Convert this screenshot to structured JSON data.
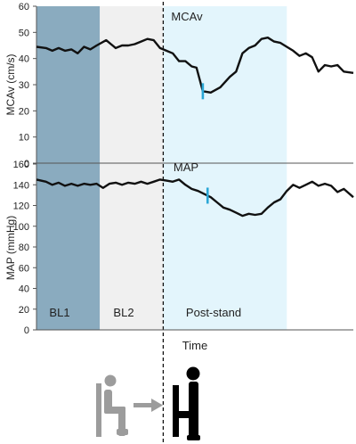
{
  "chart_data": [
    {
      "type": "line",
      "title": "MCAv",
      "xlabel": "",
      "ylabel": "MCAv (cm/s)",
      "ylim": [
        0,
        60
      ],
      "yticks": [
        0,
        10,
        20,
        30,
        40,
        50,
        60
      ],
      "grid": false,
      "nadir_marker_t": 0.525,
      "series": [
        {
          "t": [
            0,
            0.03,
            0.05,
            0.07,
            0.09,
            0.11,
            0.13,
            0.15,
            0.17,
            0.19,
            0.22,
            0.25,
            0.27,
            0.29,
            0.31,
            0.33,
            0.35,
            0.37,
            0.39,
            0.41,
            0.43,
            0.45,
            0.47,
            0.49,
            0.505,
            0.525,
            0.55,
            0.58,
            0.61,
            0.63,
            0.65,
            0.67,
            0.69,
            0.71,
            0.73,
            0.75,
            0.77,
            0.79,
            0.81,
            0.83,
            0.85,
            0.87,
            0.89,
            0.91,
            0.93,
            0.95,
            0.97,
            1.0
          ],
          "values": [
            44.5,
            44,
            43,
            44,
            43,
            43.5,
            42,
            44.5,
            43.5,
            45,
            47,
            44,
            45,
            45,
            45.5,
            46.5,
            47.5,
            47,
            44,
            43,
            42,
            39,
            39,
            37,
            36.5,
            27.5,
            27,
            29,
            33,
            35,
            42,
            44,
            45,
            47.5,
            48,
            46.5,
            46,
            44.5,
            43,
            41,
            42,
            40.5,
            35,
            37.5,
            37,
            37.5,
            35,
            34.5
          ]
        }
      ]
    },
    {
      "type": "line",
      "title": "MAP",
      "xlabel": "Time",
      "ylabel": "MAP (mmHg)",
      "ylim": [
        0,
        160
      ],
      "yticks": [
        0,
        20,
        40,
        60,
        80,
        100,
        120,
        140,
        160
      ],
      "grid": false,
      "nadir_marker_t": 0.54,
      "phases": [
        {
          "label": "BL1",
          "from": 0.0,
          "to": 0.2,
          "color": "#8aabbf"
        },
        {
          "label": "BL2",
          "from": 0.2,
          "to": 0.4,
          "color": "#f0f0f0"
        },
        {
          "label": "Post-stand",
          "from": 0.4,
          "to": 0.79,
          "color": "#e3f5fc"
        }
      ],
      "stand_t": 0.4,
      "series": [
        {
          "t": [
            0,
            0.03,
            0.05,
            0.07,
            0.09,
            0.11,
            0.13,
            0.15,
            0.17,
            0.19,
            0.21,
            0.23,
            0.25,
            0.27,
            0.29,
            0.31,
            0.33,
            0.35,
            0.37,
            0.39,
            0.41,
            0.43,
            0.45,
            0.47,
            0.49,
            0.51,
            0.53,
            0.55,
            0.57,
            0.59,
            0.61,
            0.63,
            0.65,
            0.67,
            0.69,
            0.71,
            0.73,
            0.75,
            0.77,
            0.79,
            0.81,
            0.83,
            0.85,
            0.87,
            0.89,
            0.91,
            0.93,
            0.95,
            0.97,
            1.0
          ],
          "values": [
            145,
            143,
            140,
            142,
            139,
            141,
            139,
            141,
            140,
            141,
            137,
            141,
            142,
            140,
            142,
            141,
            143,
            141,
            143,
            145,
            144,
            143,
            145,
            140,
            136,
            134,
            131,
            128,
            123,
            118,
            116,
            113,
            110,
            112,
            111,
            112,
            118,
            123,
            126,
            134,
            140,
            137,
            140,
            143,
            139,
            141,
            139,
            133,
            136,
            128
          ]
        }
      ]
    }
  ],
  "colors": {
    "trace": "#111111",
    "nadir_marker": "#2aa7d6",
    "axis": "#555555",
    "figure": "#9c9c9c"
  },
  "labels": {
    "mcav_title": "MCAv",
    "mcav_ylabel": "MCAv (cm/s)",
    "map_title": "MAP",
    "map_ylabel": "MAP (mmHg)",
    "xlabel": "Time",
    "phase_bl1": "BL1",
    "phase_bl2": "BL2",
    "phase_post": "Post-stand"
  },
  "icons": [
    "seated-person-icon",
    "arrow-right-icon",
    "standing-person-icon"
  ]
}
